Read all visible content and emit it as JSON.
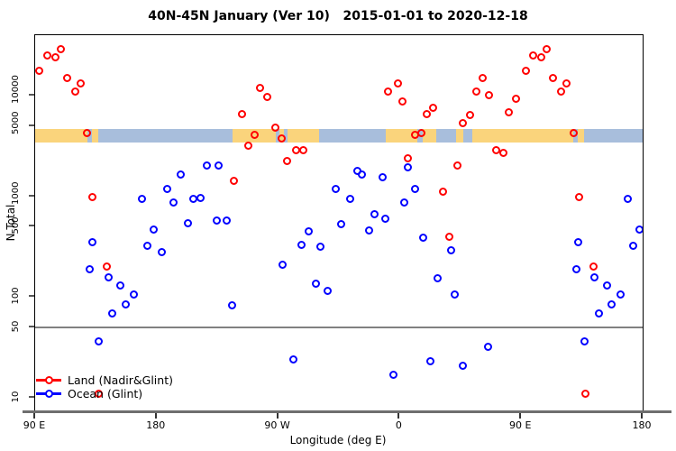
{
  "title": "40N-45N January (Ver 10)   2015-01-01 to 2020-12-18",
  "colors": {
    "land_series": "#FF0000",
    "ocean_series": "#0000FF",
    "band_land": "#FAD47C",
    "band_ocean": "#A8BEDC",
    "reference_line": "#808080",
    "axis_bar": "#6E6E6E"
  },
  "legend": {
    "items": [
      {
        "label": "Land (Nadir&Glint)",
        "series": "land"
      },
      {
        "label": "Ocean (Glint)",
        "series": "ocean"
      }
    ]
  },
  "axes": {
    "x": {
      "label": "Longitude (deg E)",
      "range_deg_e": [
        90,
        540
      ],
      "ticks": [
        {
          "pos": 90,
          "label": "90 E"
        },
        {
          "pos": 180,
          "label": "180"
        },
        {
          "pos": 270,
          "label": "90 W"
        },
        {
          "pos": 360,
          "label": "0"
        },
        {
          "pos": 450,
          "label": "90 E"
        },
        {
          "pos": 540,
          "label": "180"
        }
      ]
    },
    "y": {
      "label": "N Total",
      "scale": "log",
      "ticks": [
        10,
        50,
        100,
        500,
        1000,
        5000,
        10000
      ]
    }
  },
  "reference_line_y": 50,
  "band": {
    "description": "land/ocean surface strip for 40N-45N vs longitude",
    "n_range_approx": [
      3400,
      4700
    ],
    "segments": [
      {
        "from": 90,
        "to": 128.5,
        "surface": "land"
      },
      {
        "from": 128.5,
        "to": 132,
        "surface": "ocean"
      },
      {
        "from": 132,
        "to": 136.5,
        "surface": "land"
      },
      {
        "from": 136.5,
        "to": 236,
        "surface": "ocean"
      },
      {
        "from": 236,
        "to": 268,
        "surface": "land"
      },
      {
        "from": 268,
        "to": 271,
        "surface": "ocean"
      },
      {
        "from": 271,
        "to": 274,
        "surface": "land"
      },
      {
        "from": 274,
        "to": 277,
        "surface": "ocean"
      },
      {
        "from": 277,
        "to": 300,
        "surface": "land"
      },
      {
        "from": 300,
        "to": 350,
        "surface": "ocean"
      },
      {
        "from": 350,
        "to": 373,
        "surface": "land"
      },
      {
        "from": 373,
        "to": 377,
        "surface": "ocean"
      },
      {
        "from": 377,
        "to": 387,
        "surface": "land"
      },
      {
        "from": 387,
        "to": 402,
        "surface": "ocean"
      },
      {
        "from": 402,
        "to": 407,
        "surface": "land"
      },
      {
        "from": 407,
        "to": 414,
        "surface": "ocean"
      },
      {
        "from": 414,
        "to": 488.5,
        "surface": "land"
      },
      {
        "from": 488.5,
        "to": 492,
        "surface": "ocean"
      },
      {
        "from": 492,
        "to": 496.5,
        "surface": "land"
      },
      {
        "from": 496.5,
        "to": 540,
        "surface": "ocean"
      }
    ]
  },
  "chart_data": {
    "type": "scatter",
    "title": "40N-45N January (Ver 10)   2015-01-01 to 2020-12-18",
    "xlabel": "Longitude (deg E)",
    "ylabel": "N Total",
    "x_axis_span_deg_e": [
      90,
      540
    ],
    "y_scale": "log",
    "ylim_approx": [
      7,
      40000
    ],
    "grid": false,
    "legend_position": "bottom-left",
    "wrap_rule": "points with longitude 90E-180E are plotted twice, at lon and lon+360",
    "series": [
      {
        "name": "Land (Nadir&Glint)",
        "color": "#FF0000",
        "points_lon_n": [
          [
            98.7,
            25200
          ],
          [
            104.7,
            24200
          ],
          [
            108.7,
            29000
          ],
          [
            93.3,
            17700
          ],
          [
            113.4,
            15000
          ],
          [
            123.4,
            13300
          ],
          [
            119.4,
            11000
          ],
          [
            128.7,
            4280
          ],
          [
            132.7,
            990
          ],
          [
            143.4,
            200
          ],
          [
            137.4,
            11
          ],
          [
            236.9,
            1410
          ],
          [
            256.9,
            11800
          ],
          [
            261.6,
            9600
          ],
          [
            242.9,
            6600
          ],
          [
            267.6,
            4850
          ],
          [
            252.9,
            4100
          ],
          [
            272.3,
            3780
          ],
          [
            247.6,
            3200
          ],
          [
            283.6,
            2840
          ],
          [
            288.3,
            2840
          ],
          [
            276.9,
            2220
          ],
          [
            358.4,
            13300
          ],
          [
            351.7,
            11000
          ],
          [
            2.4,
            8800
          ],
          [
            20.4,
            6600
          ],
          [
            25.1,
            7600
          ],
          [
            11.1,
            4100
          ],
          [
            16.4,
            4200
          ],
          [
            6.4,
            2400
          ],
          [
            43.1,
            2040
          ],
          [
            32.4,
            1120
          ],
          [
            37.1,
            400
          ],
          [
            61.8,
            14800
          ],
          [
            57.1,
            11000
          ],
          [
            66.4,
            10000
          ],
          [
            86.5,
            9200
          ],
          [
            81.1,
            6750
          ],
          [
            52.4,
            6470
          ],
          [
            47.1,
            5270
          ],
          [
            71.7,
            2840
          ],
          [
            77.1,
            2720
          ]
        ]
      },
      {
        "name": "Ocean (Glint)",
        "color": "#0000FF",
        "points_lon_n": [
          [
            168.8,
            950
          ],
          [
            187.5,
            1170
          ],
          [
            197.5,
            1660
          ],
          [
            192.8,
            860
          ],
          [
            207.5,
            950
          ],
          [
            212.2,
            970
          ],
          [
            216.9,
            2000
          ],
          [
            226.2,
            2000
          ],
          [
            224.2,
            580
          ],
          [
            231.6,
            570
          ],
          [
            203.5,
            535
          ],
          [
            177.5,
            470
          ],
          [
            172.8,
            320
          ],
          [
            183.5,
            282
          ],
          [
            132.1,
            347
          ],
          [
            130.7,
            187
          ],
          [
            144.1,
            158
          ],
          [
            153.4,
            131
          ],
          [
            163.4,
            105
          ],
          [
            156.8,
            84
          ],
          [
            147.4,
            69
          ],
          [
            136.8,
            36
          ],
          [
            328.4,
            1800
          ],
          [
            331.7,
            1630
          ],
          [
            347.1,
            1560
          ],
          [
            312.4,
            1170
          ],
          [
            323.1,
            950
          ],
          [
            11.7,
            1190
          ],
          [
            3.1,
            860
          ],
          [
            341.7,
            670
          ],
          [
            349.7,
            604
          ],
          [
            316.4,
            524
          ],
          [
            337.1,
            462
          ],
          [
            292.3,
            444
          ],
          [
            301.1,
            313
          ],
          [
            287.0,
            326
          ],
          [
            17.1,
            385
          ],
          [
            273.6,
            211
          ],
          [
            297.7,
            137
          ],
          [
            306.4,
            114
          ],
          [
            235.6,
            82
          ],
          [
            281.6,
            24
          ],
          [
            355.1,
            17
          ],
          [
            22.5,
            23
          ],
          [
            37.8,
            288
          ],
          [
            40.5,
            107
          ],
          [
            27.8,
            152
          ],
          [
            65.8,
            32
          ],
          [
            47.1,
            21
          ],
          [
            6.4,
            1920
          ]
        ]
      }
    ]
  }
}
